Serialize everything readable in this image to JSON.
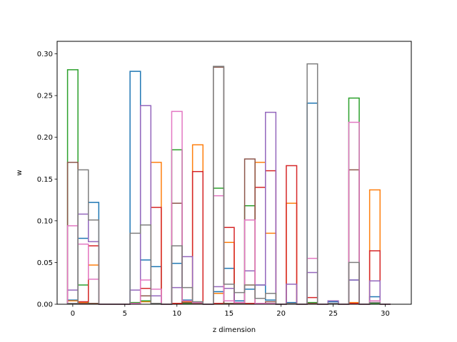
{
  "chart_data": {
    "type": "bar",
    "histtype": "step",
    "xlabel": "z dimension",
    "ylabel": "w",
    "xlim": [
      -1.5,
      32.5
    ],
    "ylim": [
      0,
      0.315
    ],
    "xticks": [
      0,
      5,
      10,
      15,
      20,
      25,
      30
    ],
    "yticks": [
      0.0,
      0.05,
      0.1,
      0.15,
      0.2,
      0.25,
      0.3
    ],
    "x": [
      0,
      1,
      2,
      3,
      4,
      5,
      6,
      7,
      8,
      9,
      10,
      11,
      12,
      13,
      14,
      15,
      16,
      17,
      18,
      19,
      20,
      21,
      22,
      23,
      24,
      25,
      26,
      27,
      28,
      29,
      30
    ],
    "grid": false,
    "series": [
      {
        "color": "#1f77b4",
        "values": [
          0.005,
          0.079,
          0.122,
          0,
          0,
          0,
          0.279,
          0.053,
          0.045,
          0,
          0.049,
          0.005,
          0.001,
          0,
          0.015,
          0.043,
          0.004,
          0.018,
          0.023,
          0.005,
          0,
          0.002,
          0,
          0.241,
          0,
          0.003,
          0,
          0.029,
          0,
          0.009,
          0
        ]
      },
      {
        "color": "#ff7f0e",
        "values": [
          0.004,
          0.002,
          0.047,
          0,
          0,
          0,
          0.001,
          0.003,
          0.17,
          0,
          0.001,
          0.003,
          0.191,
          0,
          0.013,
          0.074,
          0.001,
          0.023,
          0.17,
          0.085,
          0,
          0.121,
          0,
          0.001,
          0,
          0.001,
          0,
          0.002,
          0,
          0.137,
          0
        ]
      },
      {
        "color": "#2ca02c",
        "values": [
          0.281,
          0.023,
          0.001,
          0,
          0,
          0,
          0.002,
          0.004,
          0.001,
          0,
          0.185,
          0.001,
          0.001,
          0,
          0.139,
          0.001,
          0.001,
          0.118,
          0.001,
          0.001,
          0,
          0.001,
          0,
          0.002,
          0,
          0.001,
          0,
          0.247,
          0,
          0.001,
          0
        ]
      },
      {
        "color": "#d62728",
        "values": [
          0.001,
          0.003,
          0.07,
          0,
          0,
          0,
          0.001,
          0.019,
          0.116,
          0,
          0.001,
          0.002,
          0.159,
          0,
          0.001,
          0.092,
          0.001,
          0.001,
          0.14,
          0.16,
          0,
          0.166,
          0,
          0.008,
          0,
          0.001,
          0,
          0.001,
          0,
          0.064,
          0
        ]
      },
      {
        "color": "#9467bd",
        "values": [
          0.017,
          0.108,
          0.075,
          0,
          0,
          0,
          0.017,
          0.238,
          0.01,
          0,
          0.02,
          0.057,
          0.002,
          0,
          0.021,
          0.019,
          0.002,
          0.04,
          0.023,
          0.23,
          0,
          0.024,
          0,
          0.038,
          0,
          0.004,
          0,
          0.029,
          0,
          0.028,
          0
        ]
      },
      {
        "color": "#8c564b",
        "values": [
          0.17,
          0.001,
          0.001,
          0,
          0,
          0,
          0.001,
          0.01,
          0.001,
          0,
          0.121,
          0.002,
          0.001,
          0,
          0.284,
          0.001,
          0.001,
          0.174,
          0.001,
          0.003,
          0,
          0.001,
          0,
          0.001,
          0,
          0.001,
          0,
          0.161,
          0,
          0.002,
          0
        ]
      },
      {
        "color": "#e377c2",
        "values": [
          0.094,
          0.072,
          0.03,
          0,
          0,
          0,
          0.001,
          0.029,
          0.018,
          0,
          0.231,
          0.004,
          0.002,
          0,
          0.13,
          0.004,
          0.002,
          0.101,
          0.001,
          0.001,
          0,
          0.001,
          0,
          0.055,
          0,
          0.001,
          0,
          0.218,
          0,
          0.004,
          0
        ]
      },
      {
        "color": "#7f7f7f",
        "values": [
          0.001,
          0.161,
          0.101,
          0,
          0,
          0,
          0.085,
          0.095,
          0.001,
          0,
          0.07,
          0.02,
          0.003,
          0,
          0.285,
          0.024,
          0.014,
          0.023,
          0.007,
          0.013,
          0,
          0.001,
          0,
          0.288,
          0,
          0.001,
          0,
          0.05,
          0,
          0.002,
          0
        ]
      }
    ]
  }
}
